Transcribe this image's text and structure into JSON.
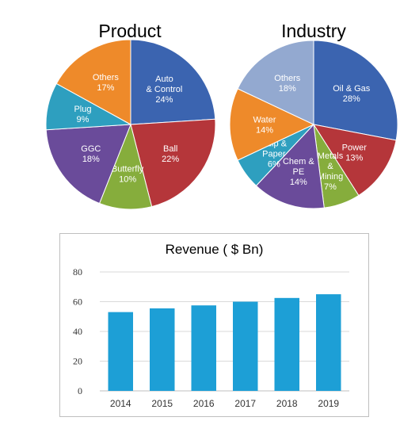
{
  "chart_data": [
    {
      "type": "pie",
      "title": "Product",
      "slices": [
        {
          "label": "Auto & Control",
          "lines": [
            "Auto",
            "& Control",
            "24%"
          ],
          "value": 24,
          "color": "#3b64b0"
        },
        {
          "label": "Ball",
          "lines": [
            "Ball",
            "22%"
          ],
          "value": 22,
          "color": "#b5363a"
        },
        {
          "label": "Butterfly",
          "lines": [
            "Butterfly",
            "10%"
          ],
          "value": 10,
          "color": "#86ad3c"
        },
        {
          "label": "GGC",
          "lines": [
            "GGC",
            "18%"
          ],
          "value": 18,
          "color": "#6a4b9a"
        },
        {
          "label": "Plug",
          "lines": [
            "Plug",
            "9%"
          ],
          "value": 9,
          "color": "#2e9fbf"
        },
        {
          "label": "Others",
          "lines": [
            "Others",
            "17%"
          ],
          "value": 17,
          "color": "#ee8a2a"
        }
      ]
    },
    {
      "type": "pie",
      "title": "Industry",
      "slices": [
        {
          "label": "Oil & Gas",
          "lines": [
            "Oil & Gas",
            "28%"
          ],
          "value": 28,
          "color": "#3b64b0"
        },
        {
          "label": "Power",
          "lines": [
            "Power",
            "13%"
          ],
          "value": 13,
          "color": "#b5363a"
        },
        {
          "label": "Metals & Mining",
          "lines": [
            "Metals",
            "&",
            "Mining",
            "7%"
          ],
          "value": 7,
          "color": "#86ad3c"
        },
        {
          "label": "Chem & PE",
          "lines": [
            "Chem &",
            "PE",
            "14%"
          ],
          "value": 14,
          "color": "#6a4b9a"
        },
        {
          "label": "Pulp & Paper",
          "lines": [
            "Pulp &",
            "Paper",
            "6%"
          ],
          "value": 6,
          "color": "#2e9fbf"
        },
        {
          "label": "Water",
          "lines": [
            "Water",
            "14%"
          ],
          "value": 14,
          "color": "#ee8a2a"
        },
        {
          "label": "Others",
          "lines": [
            "Others",
            "18%"
          ],
          "value": 18,
          "color": "#93a9d0"
        }
      ]
    },
    {
      "type": "bar",
      "title": "Revenue ( $ Bn)",
      "categories": [
        "2014",
        "2015",
        "2016",
        "2017",
        "2018",
        "2019"
      ],
      "values": [
        53,
        55.5,
        57.5,
        60,
        62.5,
        65
      ],
      "ylim": [
        0,
        80
      ],
      "yticks": [
        0,
        20,
        40,
        60,
        80
      ],
      "grid": true,
      "color": "#1d9fd6"
    }
  ]
}
